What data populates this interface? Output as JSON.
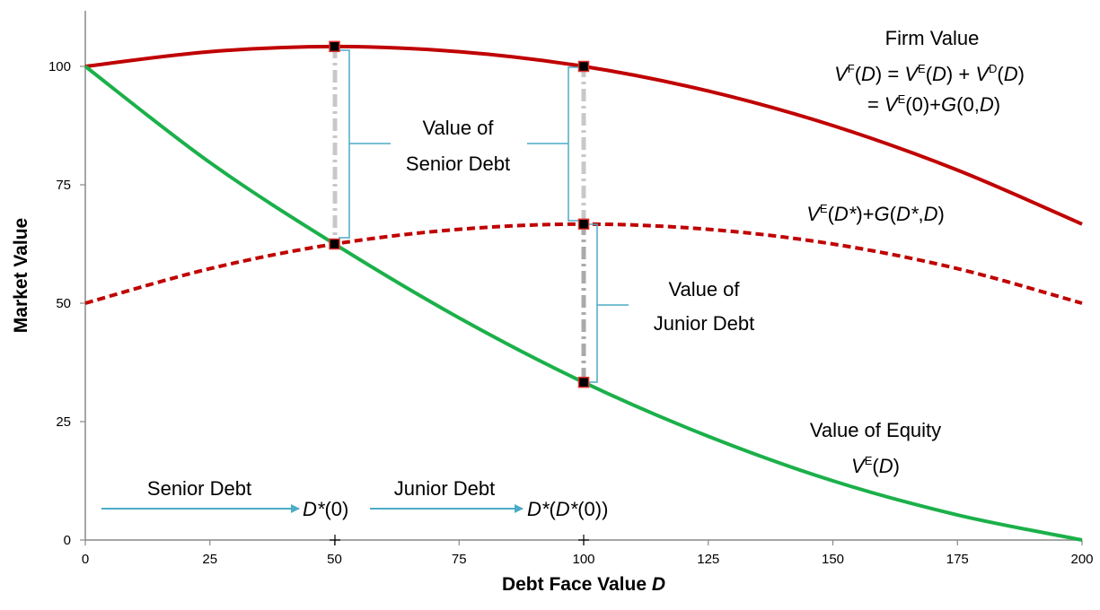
{
  "chart_data": {
    "type": "line",
    "xlabel": "Debt Face Value",
    "xlabel_var": "D",
    "ylabel": "Market Value",
    "xlim": [
      0,
      200
    ],
    "ylim": [
      0,
      110
    ],
    "x_ticks": [
      0,
      25,
      50,
      75,
      100,
      125,
      150,
      175,
      200
    ],
    "y_ticks": [
      0,
      25,
      50,
      75,
      100
    ],
    "grid": false,
    "series": [
      {
        "name": "Firm Value",
        "style": "solid",
        "color": "#C00000",
        "x": [
          0,
          25,
          50,
          75,
          100,
          125,
          150,
          175,
          200
        ],
        "y": [
          100,
          103.1,
          104.2,
          103.1,
          100,
          94.8,
          87.5,
          78.1,
          66.7
        ]
      },
      {
        "name": "V^E(D*)+G(D*,D)",
        "style": "dashed",
        "color": "#C00000",
        "x": [
          0,
          25,
          50,
          75,
          100,
          125,
          150,
          175,
          200
        ],
        "y": [
          50,
          57.3,
          62.5,
          65.6,
          66.7,
          65.6,
          62.5,
          57.3,
          50
        ]
      },
      {
        "name": "Value of Equity",
        "style": "solid",
        "color": "#1BB04A",
        "x": [
          0,
          25,
          50,
          75,
          100,
          125,
          150,
          175,
          200
        ],
        "y": [
          100,
          79.7,
          62.5,
          46.9,
          33.3,
          21.9,
          12.5,
          5.3,
          0
        ]
      }
    ],
    "markers": [
      {
        "x": 50,
        "y": 104.2
      },
      {
        "x": 50,
        "y": 62.5
      },
      {
        "x": 100,
        "y": 100
      },
      {
        "x": 100,
        "y": 66.7
      },
      {
        "x": 100,
        "y": 33.3
      }
    ],
    "annotations": {
      "firm_value": {
        "title": "Firm Value",
        "eq1": [
          "V",
          "F",
          "(",
          "D",
          ") = ",
          "V",
          "E",
          "(",
          "D",
          ") + ",
          "V",
          "D",
          "(",
          "D",
          ")"
        ],
        "eq2": [
          "= ",
          "V",
          "E",
          "(0)+",
          "G",
          "(0,",
          "D",
          ")"
        ]
      },
      "dashed_label": [
        "V",
        "E",
        "(",
        "D*",
        ")+",
        "G",
        "(",
        "D*",
        ",",
        "D",
        ")"
      ],
      "senior_value": [
        "Value of",
        "Senior Debt"
      ],
      "junior_value": [
        "Value of",
        "Junior Debt"
      ],
      "equity": {
        "title": "Value of Equity",
        "formula": [
          "V",
          "E",
          "(",
          "D",
          ")"
        ]
      },
      "bottom": {
        "senior_debt": "Senior Debt",
        "junior_debt": "Junior Debt",
        "d_star_0": [
          "D*",
          "(0)"
        ],
        "d_star_d_star_0": [
          "D*",
          "(",
          "D*",
          "(0))"
        ]
      }
    }
  }
}
